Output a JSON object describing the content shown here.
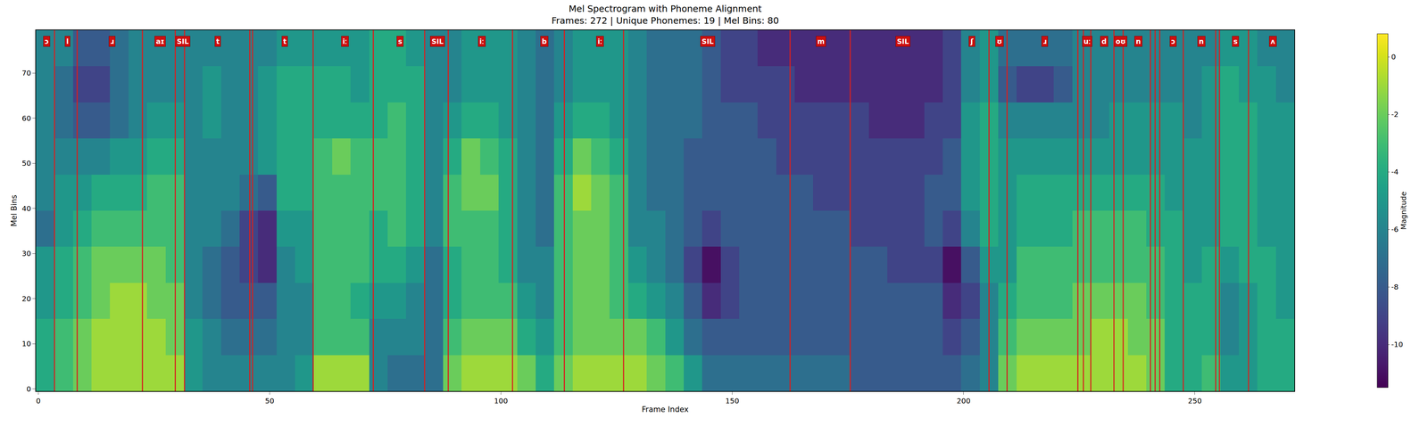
{
  "chart_data": {
    "type": "heatmap",
    "title": "Mel Spectrogram with Phoneme Alignment",
    "subtitle": "Frames: 272 | Unique Phonemes: 19 | Mel Bins: 80",
    "x_label": "Frame Index",
    "y_label": "Mel Bins",
    "grid": false,
    "xlim": [
      -0.5,
      271.5
    ],
    "ylim": [
      -0.5,
      79.5
    ],
    "xticks": [
      0,
      50,
      100,
      150,
      200,
      250
    ],
    "yticks": [
      0,
      10,
      20,
      30,
      40,
      50,
      60,
      70
    ],
    "x_edges": [
      -0.5,
      3.5,
      7.5,
      11.5,
      15.5,
      19.5,
      23.5,
      27.5,
      31.5,
      35.5,
      39.5,
      43.5,
      47.5,
      51.5,
      55.5,
      59.5,
      63.5,
      67.5,
      71.5,
      75.5,
      79.5,
      83.5,
      87.5,
      91.5,
      95.5,
      99.5,
      103.5,
      107.5,
      111.5,
      115.5,
      119.5,
      123.5,
      127.5,
      131.5,
      135.5,
      139.5,
      143.5,
      147.5,
      151.5,
      155.5,
      159.5,
      163.5,
      167.5,
      171.5,
      175.5,
      179.5,
      183.5,
      187.5,
      191.5,
      195.5,
      199.5,
      203.5,
      207.5,
      211.5,
      215.5,
      219.5,
      223.5,
      227.5,
      231.5,
      235.5,
      239.5,
      243.5,
      247.5,
      251.5,
      255.5,
      259.5,
      263.5,
      267.5,
      271.5
    ],
    "y_edges": [
      -0.5,
      7.5,
      15.5,
      23.5,
      31.5,
      39.5,
      47.5,
      55.5,
      63.5,
      71.5,
      79.5
    ],
    "cells_by_frame": [
      [
        -4,
        -4,
        -5,
        -5,
        -7,
        -6,
        -6,
        -6,
        -6,
        -6
      ],
      [
        -3,
        -3,
        -4,
        -4,
        -5,
        -5,
        -6,
        -7,
        -7,
        -6
      ],
      [
        -2,
        -2,
        -3,
        -3,
        -4,
        -5,
        -6,
        -8,
        -9,
        -8
      ],
      [
        -1,
        -1,
        -2,
        -2,
        -3,
        -4,
        -6,
        -8,
        -9,
        -8
      ],
      [
        -1,
        -1,
        -1,
        -2,
        -3,
        -4,
        -5,
        -7,
        -7,
        -7
      ],
      [
        -1,
        -1,
        -1,
        -2,
        -3,
        -4,
        -5,
        -6,
        -6,
        -6
      ],
      [
        -1,
        -1,
        -2,
        -2,
        -3,
        -3,
        -4,
        -5,
        -6,
        -6
      ],
      [
        -1,
        -2,
        -2,
        -3,
        -3,
        -3,
        -4,
        -5,
        -6,
        -6
      ],
      [
        -5,
        -5,
        -6,
        -6,
        -6,
        -6,
        -6,
        -6,
        -6,
        -6
      ],
      [
        -6,
        -6,
        -7,
        -7,
        -6,
        -6,
        -6,
        -5,
        -5,
        -6
      ],
      [
        -6,
        -7,
        -8,
        -8,
        -7,
        -6,
        -6,
        -6,
        -6,
        -6
      ],
      [
        -6,
        -7,
        -8,
        -9,
        -9,
        -7,
        -6,
        -6,
        -6,
        -6
      ],
      [
        -6,
        -7,
        -8,
        -10,
        -10,
        -8,
        -5,
        -5,
        -5,
        -6
      ],
      [
        -6,
        -6,
        -6,
        -6,
        -5,
        -4,
        -4,
        -4,
        -4,
        -5
      ],
      [
        -5,
        -6,
        -6,
        -5,
        -5,
        -4,
        -4,
        -4,
        -4,
        -5
      ],
      [
        -1,
        -3,
        -3,
        -3,
        -3,
        -3,
        -3,
        -4,
        -4,
        -5
      ],
      [
        -1,
        -3,
        -3,
        -3,
        -3,
        -3,
        -2,
        -4,
        -4,
        -5
      ],
      [
        -1,
        -3,
        -4,
        -3,
        -3,
        -3,
        -3,
        -4,
        -5,
        -5
      ],
      [
        -6,
        -6,
        -5,
        -4,
        -4,
        -3,
        -3,
        -4,
        -4,
        -4
      ],
      [
        -7,
        -6,
        -5,
        -4,
        -3,
        -3,
        -3,
        -3,
        -4,
        -4
      ],
      [
        -7,
        -6,
        -6,
        -5,
        -4,
        -4,
        -4,
        -4,
        -4,
        -5
      ],
      [
        -7,
        -7,
        -7,
        -7,
        -6,
        -6,
        -6,
        -6,
        -6,
        -6
      ],
      [
        -2,
        -3,
        -4,
        -4,
        -3,
        -3,
        -4,
        -5,
        -6,
        -6
      ],
      [
        -1,
        -2,
        -3,
        -3,
        -3,
        -2,
        -2,
        -4,
        -5,
        -5
      ],
      [
        -1,
        -2,
        -3,
        -3,
        -3,
        -2,
        -3,
        -4,
        -5,
        -5
      ],
      [
        -1,
        -2,
        -3,
        -4,
        -4,
        -4,
        -4,
        -5,
        -5,
        -5
      ],
      [
        -2,
        -4,
        -5,
        -6,
        -6,
        -6,
        -6,
        -6,
        -6,
        -6
      ],
      [
        -4,
        -5,
        -6,
        -6,
        -7,
        -7,
        -7,
        -7,
        -7,
        -7
      ],
      [
        -2,
        -3,
        -3,
        -3,
        -3,
        -3,
        -4,
        -5,
        -6,
        -6
      ],
      [
        -1,
        -2,
        -2,
        -2,
        -2,
        -1,
        -2,
        -4,
        -5,
        -5
      ],
      [
        -1,
        -2,
        -2,
        -2,
        -2,
        -2,
        -3,
        -4,
        -5,
        -5
      ],
      [
        -1,
        -2,
        -3,
        -3,
        -3,
        -3,
        -4,
        -5,
        -5,
        -5
      ],
      [
        -1,
        -2,
        -4,
        -5,
        -6,
        -6,
        -6,
        -6,
        -6,
        -6
      ],
      [
        -2,
        -3,
        -5,
        -6,
        -6,
        -7,
        -7,
        -7,
        -7,
        -7
      ],
      [
        -3,
        -5,
        -6,
        -7,
        -7,
        -7,
        -7,
        -7,
        -7,
        -7
      ],
      [
        -5,
        -7,
        -8,
        -9,
        -8,
        -8,
        -8,
        -7,
        -7,
        -7
      ],
      [
        -7,
        -8,
        -10,
        -11,
        -9,
        -8,
        -8,
        -8,
        -8,
        -8
      ],
      [
        -7,
        -8,
        -9,
        -9,
        -8,
        -8,
        -8,
        -8,
        -9,
        -9
      ],
      [
        -7,
        -8,
        -8,
        -8,
        -8,
        -8,
        -8,
        -8,
        -9,
        -9
      ],
      [
        -7,
        -8,
        -8,
        -8,
        -8,
        -8,
        -8,
        -9,
        -9,
        -10
      ],
      [
        -7,
        -8,
        -8,
        -8,
        -8,
        -8,
        -9,
        -9,
        -9,
        -10
      ],
      [
        -7,
        -8,
        -8,
        -8,
        -8,
        -8,
        -9,
        -9,
        -10,
        -10
      ],
      [
        -7,
        -8,
        -8,
        -8,
        -8,
        -9,
        -9,
        -9,
        -10,
        -10
      ],
      [
        -7,
        -8,
        -8,
        -8,
        -8,
        -9,
        -9,
        -9,
        -10,
        -10
      ],
      [
        -8,
        -8,
        -8,
        -8,
        -9,
        -9,
        -9,
        -9,
        -10,
        -10
      ],
      [
        -8,
        -8,
        -8,
        -8,
        -9,
        -9,
        -9,
        -10,
        -10,
        -10
      ],
      [
        -8,
        -8,
        -8,
        -9,
        -9,
        -9,
        -9,
        -10,
        -10,
        -10
      ],
      [
        -8,
        -8,
        -8,
        -9,
        -9,
        -9,
        -9,
        -10,
        -10,
        -10
      ],
      [
        -8,
        -8,
        -8,
        -9,
        -8,
        -8,
        -9,
        -9,
        -10,
        -10
      ],
      [
        -8,
        -9,
        -10,
        -11,
        -9,
        -8,
        -8,
        -9,
        -9,
        -9
      ],
      [
        -7,
        -8,
        -9,
        -8,
        -6,
        -5,
        -5,
        -5,
        -6,
        -6
      ],
      [
        -6,
        -6,
        -6,
        -5,
        -4,
        -4,
        -4,
        -4,
        -5,
        -5
      ],
      [
        -2,
        -3,
        -4,
        -5,
        -5,
        -5,
        -5,
        -6,
        -8,
        -7
      ],
      [
        -1,
        -2,
        -3,
        -3,
        -4,
        -4,
        -5,
        -6,
        -9,
        -7
      ],
      [
        -1,
        -2,
        -3,
        -3,
        -4,
        -4,
        -5,
        -6,
        -9,
        -7
      ],
      [
        -1,
        -2,
        -3,
        -3,
        -4,
        -4,
        -5,
        -6,
        -8,
        -7
      ],
      [
        -1,
        -2,
        -2,
        -3,
        -3,
        -4,
        -5,
        -6,
        -6,
        -6
      ],
      [
        -1,
        -1,
        -2,
        -3,
        -3,
        -4,
        -5,
        -6,
        -6,
        -6
      ],
      [
        -1,
        -1,
        -2,
        -3,
        -3,
        -4,
        -5,
        -5,
        -6,
        -6
      ],
      [
        -1,
        -2,
        -2,
        -3,
        -3,
        -4,
        -5,
        -5,
        -6,
        -6
      ],
      [
        -2,
        -2,
        -3,
        -3,
        -4,
        -4,
        -5,
        -5,
        -6,
        -6
      ],
      [
        -4,
        -4,
        -4,
        -4,
        -4,
        -5,
        -5,
        -5,
        -6,
        -6
      ],
      [
        -4,
        -4,
        -4,
        -5,
        -5,
        -5,
        -5,
        -6,
        -6,
        -6
      ],
      [
        -3,
        -4,
        -4,
        -4,
        -5,
        -5,
        -5,
        -5,
        -5,
        -6
      ],
      [
        -5,
        -6,
        -6,
        -5,
        -4,
        -4,
        -4,
        -4,
        -4,
        -5
      ],
      [
        -5,
        -5,
        -5,
        -4,
        -4,
        -4,
        -4,
        -4,
        -5,
        -5
      ],
      [
        -4,
        -4,
        -4,
        -4,
        -5,
        -5,
        -5,
        -5,
        -5,
        -6
      ],
      [
        -4,
        -4,
        -5,
        -5,
        -5,
        -5,
        -5,
        -5,
        -6,
        -6
      ]
    ],
    "color_range": [
      -11.5,
      0.8
    ],
    "color_ticks": [
      -10,
      -8,
      -6,
      -4,
      -2,
      0
    ],
    "colorbar_label": "Magnitude",
    "boundaries": [
      3.5,
      8.4,
      22.5,
      29.6,
      31.6,
      45.7,
      46.3,
      59.4,
      72.4,
      83.5,
      88.6,
      102.5,
      113.7,
      126.5,
      162.5,
      175.5,
      205.5,
      209.4,
      224.7,
      225.9,
      227.5,
      232.5,
      234.5,
      240.4,
      241.4,
      242.4,
      247.5,
      254.5,
      255.3,
      261.6
    ],
    "phonemes": [
      {
        "frame": 1.8,
        "label": "ɔ"
      },
      {
        "frame": 6.3,
        "label": "l"
      },
      {
        "frame": 15.9,
        "label": "ɹ"
      },
      {
        "frame": 26.3,
        "label": "aɪ"
      },
      {
        "frame": 31.2,
        "label": "SIL"
      },
      {
        "frame": 38.8,
        "label": "t"
      },
      {
        "frame": 53.3,
        "label": "t"
      },
      {
        "frame": 66.3,
        "label": "iː"
      },
      {
        "frame": 78.2,
        "label": "s"
      },
      {
        "frame": 86.3,
        "label": "SIL"
      },
      {
        "frame": 95.9,
        "label": "iː"
      },
      {
        "frame": 109.4,
        "label": "b"
      },
      {
        "frame": 121.4,
        "label": "iː"
      },
      {
        "frame": 144.7,
        "label": "SIL"
      },
      {
        "frame": 169.2,
        "label": "m"
      },
      {
        "frame": 186.9,
        "label": "SIL"
      },
      {
        "frame": 201.8,
        "label": "ʃ"
      },
      {
        "frame": 207.8,
        "label": "ʊ"
      },
      {
        "frame": 217.5,
        "label": "ɹ"
      },
      {
        "frame": 226.7,
        "label": "uː"
      },
      {
        "frame": 230.4,
        "label": "d"
      },
      {
        "frame": 234.0,
        "label": "oʊ"
      },
      {
        "frame": 237.8,
        "label": "n"
      },
      {
        "frame": 245.3,
        "label": "ɔ"
      },
      {
        "frame": 251.4,
        "label": "n"
      },
      {
        "frame": 258.8,
        "label": "s"
      },
      {
        "frame": 266.9,
        "label": "ʌ"
      }
    ]
  }
}
